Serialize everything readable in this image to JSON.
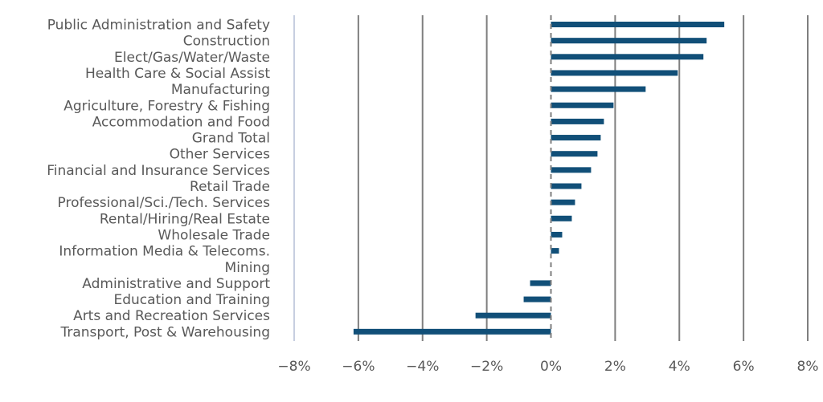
{
  "chart_data": {
    "type": "bar",
    "orientation": "horizontal",
    "title": "",
    "xlabel": "",
    "ylabel": "",
    "categories": [
      "Public Administration and Safety",
      "Construction",
      "Elect/Gas/Water/Waste",
      "Health Care & Social Assist",
      "Manufacturing",
      "Agriculture, Forestry & Fishing",
      "Accommodation and Food",
      "Grand Total",
      "Other Services",
      "Financial and Insurance Services",
      "Retail Trade",
      "Professional/Sci./Tech. Services",
      "Rental/Hiring/Real Estate",
      "Wholesale Trade",
      "Information Media & Telecoms.",
      "Mining",
      "Administrative and Support",
      "Education and Training",
      "Arts and Recreation Services",
      "Transport, Post & Warehousing"
    ],
    "values": [
      5.4,
      4.85,
      4.75,
      3.95,
      2.95,
      1.95,
      1.65,
      1.55,
      1.45,
      1.25,
      0.95,
      0.75,
      0.65,
      0.35,
      0.25,
      0.0,
      -0.65,
      -0.85,
      -2.35,
      -6.15
    ],
    "xlim": [
      -8,
      8
    ],
    "ticks": [
      -8,
      -6,
      -4,
      -2,
      0,
      2,
      4,
      6,
      8
    ],
    "tick_labels": [
      "−8%",
      "−6%",
      "−4%",
      "−2%",
      "0%",
      "2%",
      "4%",
      "6%",
      "8%"
    ],
    "grid": true,
    "legend": "none",
    "colors": {
      "bar": "#114f78",
      "grid": "#7f7f7f",
      "grid_edge": "#c7cfe0",
      "zero_line": "#7f7f7f",
      "label": "#595959"
    }
  }
}
